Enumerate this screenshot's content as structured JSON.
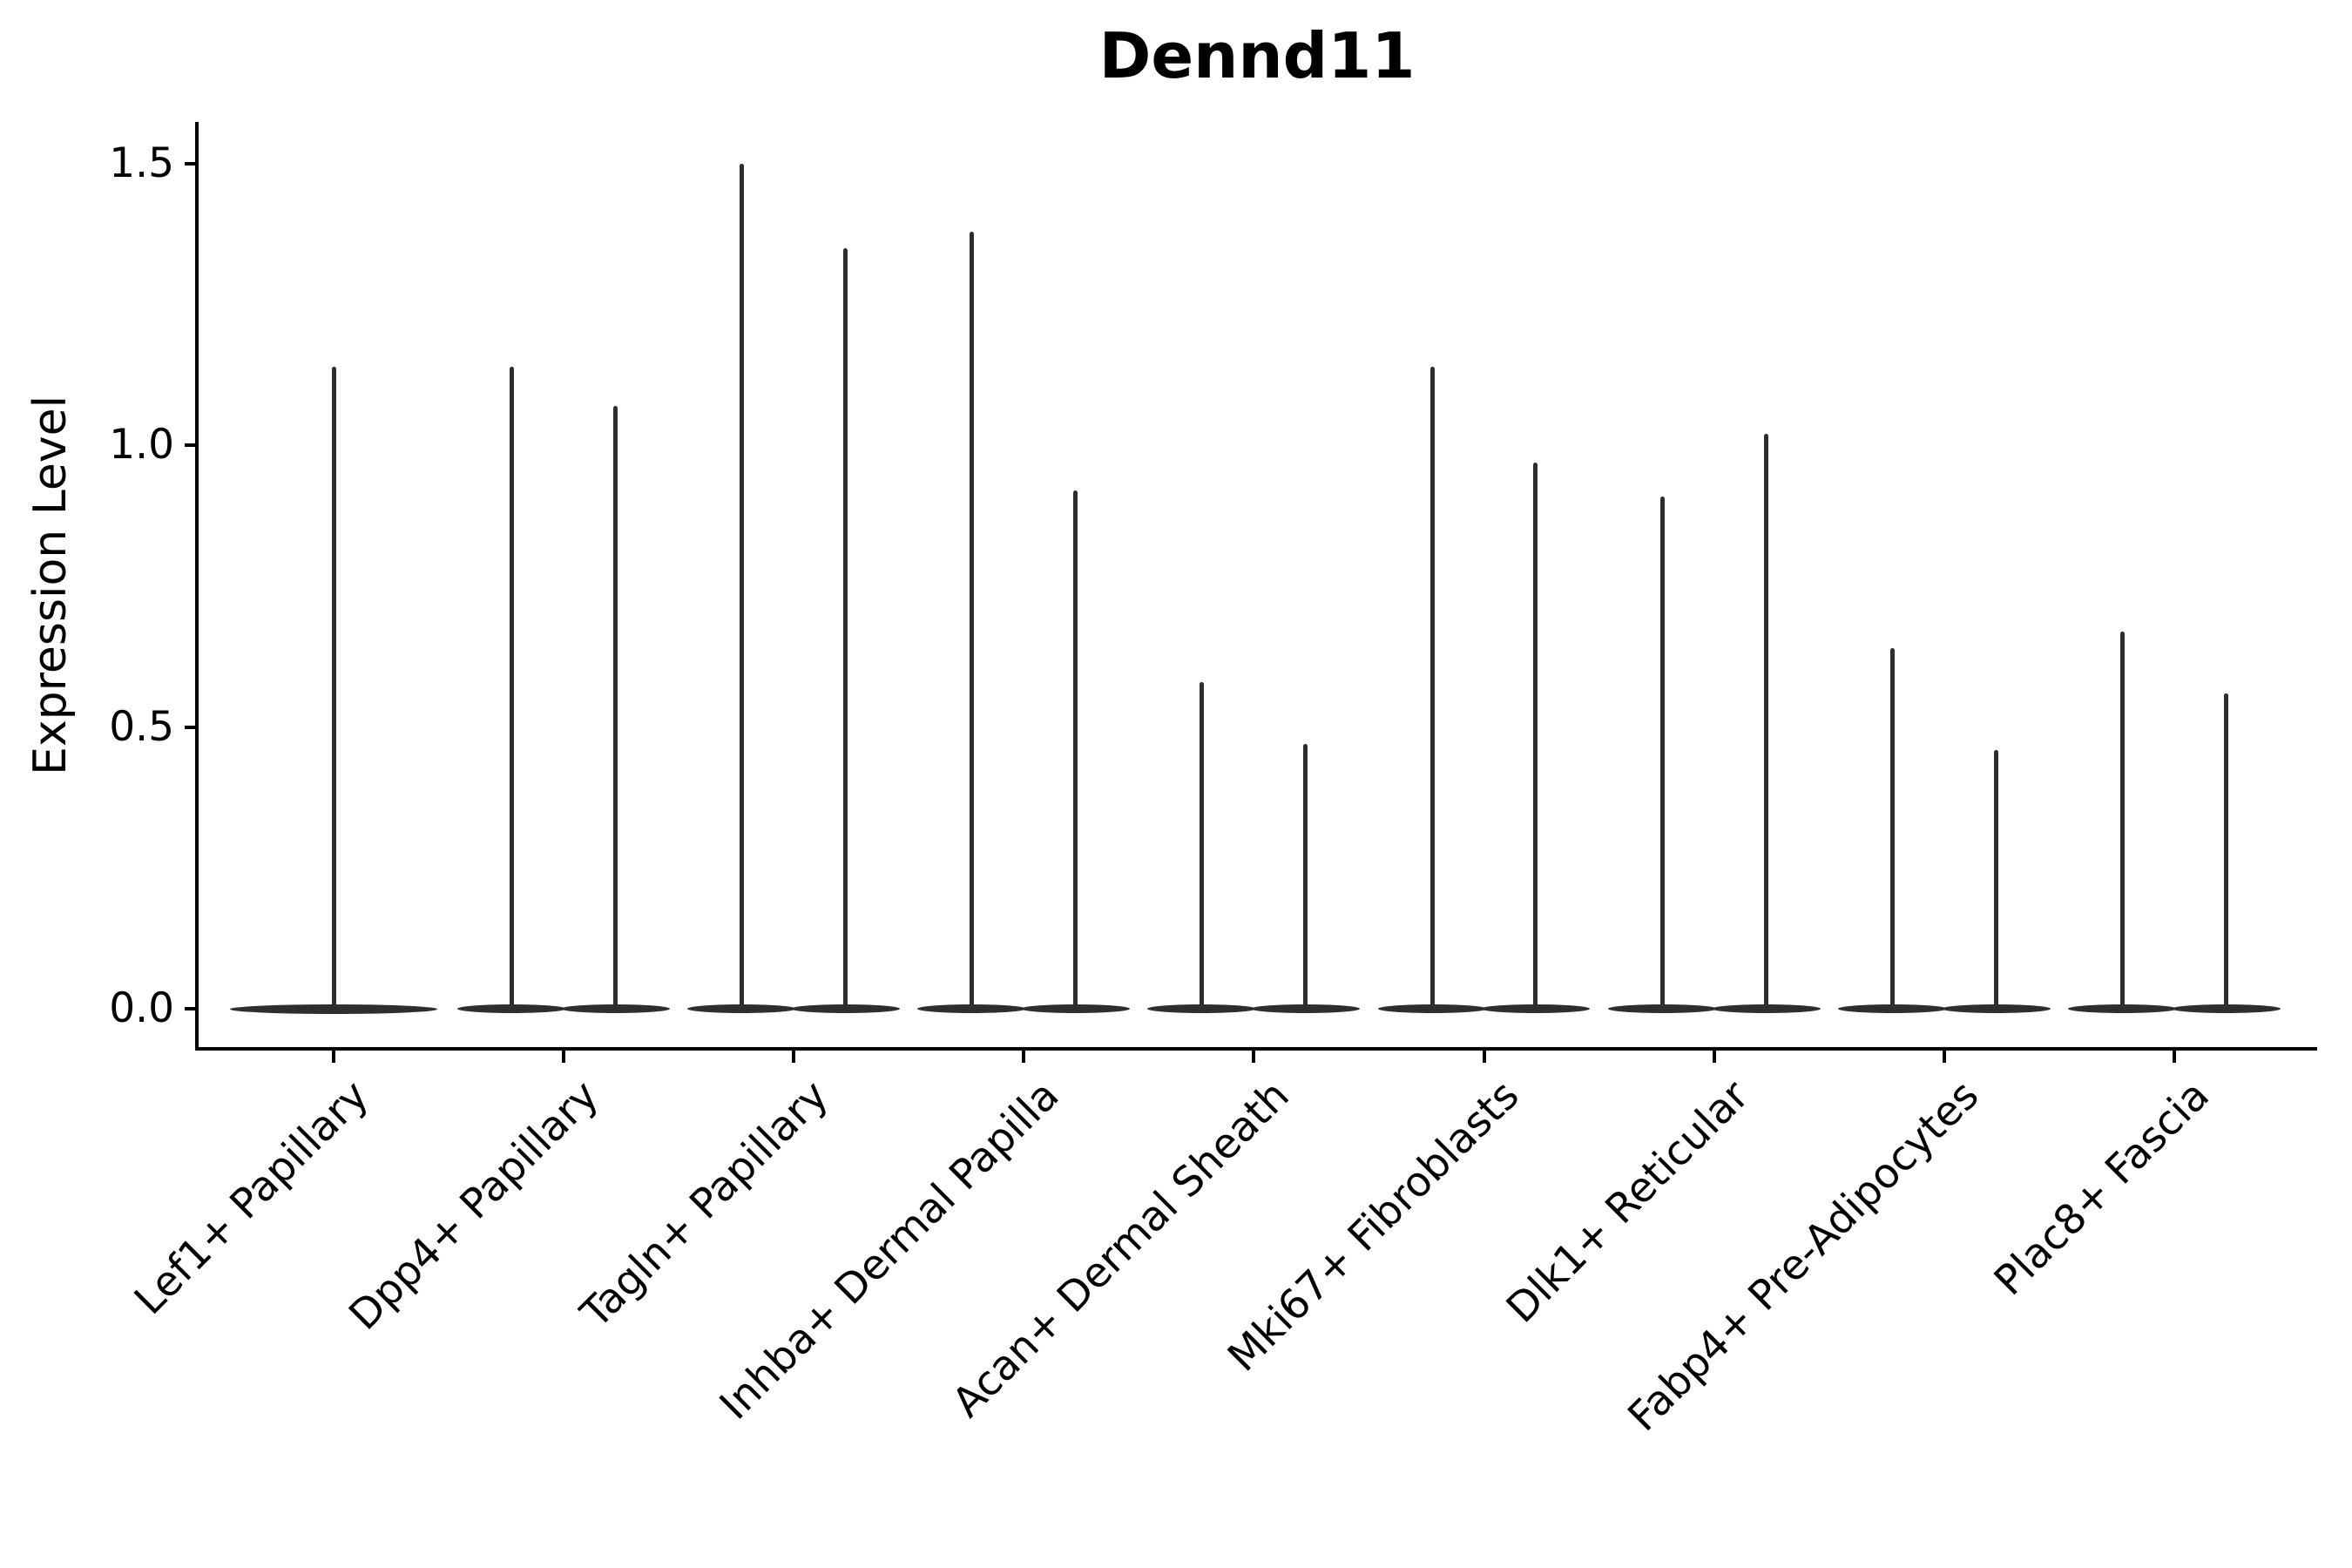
{
  "figure": {
    "background": "#ffffff"
  },
  "chart_data": {
    "type": "violin",
    "title": "Dennd11",
    "xlabel": "",
    "ylabel": "Expression Level",
    "ylim": [
      0,
      1.55
    ],
    "y_ticks": [
      {
        "value": 0.0,
        "label": "0.0"
      },
      {
        "value": 0.5,
        "label": "0.5"
      },
      {
        "value": 1.0,
        "label": "1.0"
      },
      {
        "value": 1.5,
        "label": "1.5"
      }
    ],
    "categories": [
      "Lef1+ Papillary",
      "Dpp4+ Papillary",
      "Tagln+ Papillary",
      "Inhba+ Dermal Papilla",
      "Acan+ Dermal Sheath",
      "Mki67+ Fibroblasts",
      "Dlk1+ Reticular",
      "Fabp4+ Pre-Adipocytes",
      "Plac8+ Fascia"
    ],
    "series": [
      {
        "category": "Lef1+ Papillary",
        "violins": [
          {
            "offset": 0.0,
            "max": 1.14
          }
        ]
      },
      {
        "category": "Dpp4+ Papillary",
        "violins": [
          {
            "offset": -0.225,
            "max": 1.14
          },
          {
            "offset": 0.225,
            "max": 1.07
          }
        ]
      },
      {
        "category": "Tagln+ Papillary",
        "violins": [
          {
            "offset": -0.225,
            "max": 1.5
          },
          {
            "offset": 0.225,
            "max": 1.35
          }
        ]
      },
      {
        "category": "Inhba+ Dermal Papilla",
        "violins": [
          {
            "offset": -0.225,
            "max": 1.38
          },
          {
            "offset": 0.225,
            "max": 0.92
          }
        ]
      },
      {
        "category": "Acan+ Dermal Sheath",
        "violins": [
          {
            "offset": -0.225,
            "max": 0.58
          },
          {
            "offset": 0.225,
            "max": 0.47
          }
        ]
      },
      {
        "category": "Mki67+ Fibroblasts",
        "violins": [
          {
            "offset": -0.225,
            "max": 1.14
          },
          {
            "offset": 0.225,
            "max": 0.97
          }
        ]
      },
      {
        "category": "Dlk1+ Reticular",
        "violins": [
          {
            "offset": -0.225,
            "max": 0.91
          },
          {
            "offset": 0.225,
            "max": 1.02
          }
        ]
      },
      {
        "category": "Fabp4+ Pre-Adipocytes",
        "violins": [
          {
            "offset": -0.225,
            "max": 0.64
          },
          {
            "offset": 0.225,
            "max": 0.46
          }
        ]
      },
      {
        "category": "Plac8+ Fascia",
        "violins": [
          {
            "offset": -0.225,
            "max": 0.67
          },
          {
            "offset": 0.225,
            "max": 0.56
          }
        ]
      }
    ],
    "style": {
      "violin_color": "#2e2e2e",
      "axis_color": "#000000",
      "note": "Expression mass concentrated at 0 (wide flat base); thin vertical tail rises to the listed maximum for each violin.",
      "legend": "none",
      "grid": "off"
    }
  }
}
